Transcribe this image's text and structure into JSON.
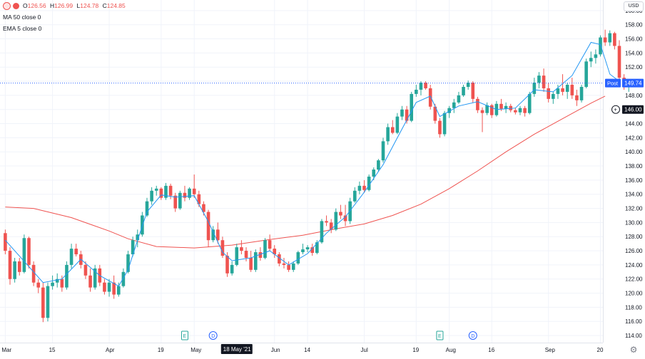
{
  "chart_data": {
    "type": "candlestick",
    "currency_button": "USD",
    "legend": {
      "ohlc_values": [
        {
          "key": "O",
          "value": "126.56"
        },
        {
          "key": "H",
          "value": "126.99"
        },
        {
          "key": "L",
          "value": "124.78"
        },
        {
          "key": "C",
          "value": "124.85"
        }
      ],
      "indicators": [
        "MA 50 close 0",
        "EMA 5 close 0"
      ]
    },
    "y_ticks": [
      "160.00",
      "158.00",
      "156.00",
      "154.00",
      "152.00",
      "150.00",
      "148.00",
      "146.00",
      "144.00",
      "142.00",
      "140.00",
      "138.00",
      "136.00",
      "134.00",
      "132.00",
      "130.00",
      "128.00",
      "126.00",
      "124.00",
      "122.00",
      "120.00",
      "118.00",
      "116.00",
      "114.00"
    ],
    "ylim": [
      113.0,
      161.5
    ],
    "x_ticks": [
      {
        "label": "Mar",
        "index": 0
      },
      {
        "label": "15",
        "index": 10
      },
      {
        "label": "Apr",
        "index": 22
      },
      {
        "label": "19",
        "index": 33
      },
      {
        "label": "May",
        "index": 40
      },
      {
        "label": "Jun",
        "index": 57
      },
      {
        "label": "14",
        "index": 64
      },
      {
        "label": "Jul",
        "index": 76
      },
      {
        "label": "19",
        "index": 87
      },
      {
        "label": "Aug",
        "index": 94
      },
      {
        "label": "16",
        "index": 103
      },
      {
        "label": "Sep",
        "index": 115
      },
      {
        "label": "20",
        "index": 126
      }
    ],
    "crosshair_date_label": "18 May '21",
    "crosshair_index": 49,
    "price_line": {
      "label": "Post",
      "value": 149.74,
      "text": "149.74",
      "color": "#2962ff"
    },
    "crosshair_price": {
      "value": 146.0,
      "text": "146.00"
    },
    "event_markers": [
      {
        "letter": "E",
        "index": 38,
        "kind": "earnings"
      },
      {
        "letter": "D",
        "index": 44,
        "kind": "dividend"
      },
      {
        "letter": "E",
        "index": 92,
        "kind": "earnings"
      },
      {
        "letter": "D",
        "index": 99,
        "kind": "dividend"
      }
    ],
    "colors": {
      "up": "#26a69a",
      "down": "#ef5350",
      "ma50": "#ef5350",
      "ema5": "#2196f3",
      "grid": "#f0f3fa"
    },
    "series": [
      {
        "name": "Candles",
        "ohlc": [
          [
            128.5,
            129.0,
            125.5,
            126.0
          ],
          [
            126.0,
            126.5,
            121.2,
            122.0
          ],
          [
            122.0,
            125.0,
            121.5,
            124.5
          ],
          [
            124.5,
            125.0,
            122.5,
            123.0
          ],
          [
            123.0,
            128.3,
            122.8,
            127.8
          ],
          [
            127.8,
            128.0,
            123.5,
            124.0
          ],
          [
            124.0,
            124.5,
            121.0,
            121.5
          ],
          [
            121.5,
            122.0,
            120.0,
            120.8
          ],
          [
            120.8,
            121.5,
            115.9,
            116.5
          ],
          [
            116.5,
            121.5,
            116.0,
            121.0
          ],
          [
            121.0,
            122.5,
            120.5,
            121.5
          ],
          [
            121.5,
            122.8,
            120.8,
            122.0
          ],
          [
            122.0,
            122.5,
            120.2,
            120.8
          ],
          [
            120.8,
            124.5,
            120.5,
            124.0
          ],
          [
            124.0,
            127.0,
            123.5,
            126.3
          ],
          [
            126.3,
            127.0,
            125.2,
            125.5
          ],
          [
            125.5,
            126.0,
            123.5,
            124.0
          ],
          [
            124.0,
            124.5,
            122.0,
            122.5
          ],
          [
            122.5,
            123.5,
            120.2,
            120.8
          ],
          [
            120.8,
            124.0,
            120.5,
            123.5
          ],
          [
            123.5,
            124.0,
            121.0,
            121.5
          ],
          [
            121.5,
            122.0,
            119.8,
            120.2
          ],
          [
            120.2,
            122.0,
            119.5,
            121.5
          ],
          [
            121.5,
            122.5,
            119.2,
            119.8
          ],
          [
            119.8,
            121.5,
            119.5,
            121.0
          ],
          [
            121.0,
            123.5,
            120.8,
            123.0
          ],
          [
            123.0,
            126.0,
            122.8,
            125.5
          ],
          [
            125.5,
            128.0,
            125.2,
            127.5
          ],
          [
            127.5,
            129.0,
            126.5,
            128.3
          ],
          [
            128.3,
            131.5,
            128.0,
            131.0
          ],
          [
            131.0,
            133.5,
            130.8,
            133.0
          ],
          [
            133.0,
            135.0,
            132.5,
            134.5
          ],
          [
            134.5,
            135.2,
            133.8,
            134.8
          ],
          [
            134.8,
            135.0,
            133.2,
            133.5
          ],
          [
            133.5,
            135.6,
            133.2,
            135.2
          ],
          [
            135.2,
            135.5,
            133.3,
            133.8
          ],
          [
            133.8,
            134.2,
            131.5,
            132.0
          ],
          [
            132.0,
            134.5,
            131.8,
            134.2
          ],
          [
            134.2,
            135.2,
            133.0,
            133.5
          ],
          [
            133.5,
            135.0,
            133.2,
            134.8
          ],
          [
            134.8,
            136.8,
            133.5,
            134.0
          ],
          [
            134.0,
            134.5,
            132.2,
            132.6
          ],
          [
            132.6,
            133.0,
            131.0,
            131.5
          ],
          [
            131.5,
            131.8,
            126.5,
            127.5
          ],
          [
            127.5,
            129.5,
            127.2,
            129.0
          ],
          [
            129.0,
            130.0,
            127.0,
            127.5
          ],
          [
            127.5,
            128.0,
            125.0,
            125.3
          ],
          [
            125.3,
            125.8,
            122.3,
            122.8
          ],
          [
            122.8,
            124.5,
            122.5,
            124.0
          ],
          [
            124.0,
            127.0,
            123.8,
            126.5
          ],
          [
            126.5,
            127.5,
            125.5,
            126.0
          ],
          [
            126.0,
            126.5,
            124.5,
            125.0
          ],
          [
            125.0,
            126.0,
            123.0,
            123.3
          ],
          [
            123.3,
            126.2,
            123.0,
            125.8
          ],
          [
            125.8,
            126.5,
            124.6,
            125.0
          ],
          [
            125.0,
            127.8,
            124.8,
            127.5
          ],
          [
            127.5,
            128.3,
            126.0,
            126.3
          ],
          [
            126.3,
            126.8,
            125.0,
            125.5
          ],
          [
            125.5,
            125.8,
            123.8,
            124.2
          ],
          [
            124.2,
            125.0,
            123.5,
            124.0
          ],
          [
            124.0,
            124.5,
            123.0,
            123.3
          ],
          [
            123.3,
            124.5,
            123.0,
            124.2
          ],
          [
            124.2,
            126.0,
            124.0,
            125.8
          ],
          [
            125.8,
            127.0,
            125.5,
            126.2
          ],
          [
            126.2,
            126.8,
            125.8,
            126.5
          ],
          [
            126.5,
            127.0,
            125.3,
            125.7
          ],
          [
            125.7,
            127.5,
            125.5,
            127.2
          ],
          [
            127.2,
            130.5,
            127.0,
            130.2
          ],
          [
            130.2,
            131.0,
            129.5,
            130.0
          ],
          [
            130.0,
            130.5,
            128.5,
            129.0
          ],
          [
            129.0,
            132.0,
            128.8,
            131.5
          ],
          [
            131.5,
            132.5,
            130.5,
            131.0
          ],
          [
            131.0,
            132.5,
            129.5,
            130.2
          ],
          [
            130.2,
            133.5,
            129.8,
            133.0
          ],
          [
            133.0,
            135.0,
            132.8,
            134.5
          ],
          [
            134.5,
            135.8,
            134.0,
            135.2
          ],
          [
            135.2,
            136.0,
            134.2,
            134.6
          ],
          [
            134.6,
            136.8,
            134.4,
            136.5
          ],
          [
            136.5,
            137.8,
            136.0,
            137.5
          ],
          [
            137.5,
            139.0,
            137.2,
            138.8
          ],
          [
            138.8,
            142.0,
            138.5,
            141.5
          ],
          [
            141.5,
            144.0,
            141.0,
            143.5
          ],
          [
            143.5,
            144.5,
            142.5,
            142.7
          ],
          [
            142.7,
            145.5,
            142.5,
            145.0
          ],
          [
            145.0,
            146.5,
            144.5,
            146.0
          ],
          [
            146.0,
            146.5,
            144.0,
            144.4
          ],
          [
            144.4,
            148.5,
            144.2,
            148.2
          ],
          [
            148.2,
            149.5,
            147.8,
            148.8
          ],
          [
            148.8,
            150.0,
            148.0,
            149.8
          ],
          [
            149.8,
            150.0,
            148.8,
            149.0
          ],
          [
            149.0,
            149.5,
            146.0,
            146.4
          ],
          [
            146.4,
            146.8,
            144.0,
            144.4
          ],
          [
            144.4,
            144.8,
            142.0,
            142.5
          ],
          [
            142.5,
            145.8,
            142.2,
            145.5
          ],
          [
            145.5,
            146.5,
            144.8,
            146.2
          ],
          [
            146.2,
            147.5,
            145.5,
            147.0
          ],
          [
            147.0,
            148.5,
            146.8,
            148.0
          ],
          [
            148.0,
            149.5,
            147.8,
            149.2
          ],
          [
            149.2,
            150.1,
            148.8,
            149.8
          ],
          [
            149.8,
            150.0,
            147.0,
            147.5
          ],
          [
            147.5,
            147.8,
            145.5,
            145.9
          ],
          [
            145.9,
            146.3,
            142.8,
            145.5
          ],
          [
            145.5,
            147.0,
            145.2,
            146.6
          ],
          [
            146.6,
            146.8,
            144.8,
            145.2
          ],
          [
            145.2,
            147.2,
            145.0,
            146.8
          ],
          [
            146.8,
            147.5,
            145.8,
            146.1
          ],
          [
            146.1,
            147.0,
            145.5,
            146.5
          ],
          [
            146.5,
            146.8,
            145.6,
            145.9
          ],
          [
            145.9,
            146.2,
            145.3,
            145.6
          ],
          [
            145.6,
            146.5,
            145.2,
            146.2
          ],
          [
            146.2,
            146.5,
            145.0,
            145.5
          ],
          [
            145.5,
            148.5,
            145.3,
            148.2
          ],
          [
            148.2,
            150.5,
            147.8,
            149.8
          ],
          [
            149.8,
            151.3,
            149.0,
            150.8
          ],
          [
            150.8,
            151.8,
            148.5,
            149.0
          ],
          [
            149.0,
            149.8,
            147.0,
            147.5
          ],
          [
            147.5,
            148.5,
            146.8,
            148.2
          ],
          [
            148.2,
            149.5,
            147.5,
            149.0
          ],
          [
            149.0,
            151.0,
            148.0,
            148.5
          ],
          [
            148.5,
            149.8,
            147.5,
            149.5
          ],
          [
            149.5,
            150.5,
            147.5,
            148.0
          ],
          [
            148.0,
            148.8,
            146.5,
            147.3
          ],
          [
            147.3,
            149.5,
            147.0,
            149.2
          ],
          [
            149.2,
            153.2,
            149.0,
            152.8
          ],
          [
            152.8,
            154.2,
            152.0,
            153.3
          ],
          [
            153.3,
            154.5,
            152.5,
            153.8
          ],
          [
            153.8,
            156.5,
            153.5,
            156.2
          ],
          [
            156.2,
            157.3,
            155.0,
            155.5
          ],
          [
            155.5,
            157.2,
            155.0,
            156.8
          ],
          [
            156.8,
            157.0,
            154.5,
            155.0
          ],
          [
            155.0,
            155.8,
            149.5,
            150.5
          ],
          [
            150.5,
            151.0,
            148.8,
            149.2
          ],
          [
            149.2,
            150.2,
            148.5,
            149.9
          ]
        ]
      },
      {
        "name": "MA 50",
        "points": [
          [
            0,
            132.2
          ],
          [
            6,
            132.0
          ],
          [
            14,
            130.7
          ],
          [
            22,
            128.8
          ],
          [
            26,
            127.7
          ],
          [
            32,
            126.6
          ],
          [
            40,
            126.4
          ],
          [
            48,
            126.8
          ],
          [
            56,
            127.6
          ],
          [
            63,
            128.2
          ],
          [
            70,
            129.1
          ],
          [
            76,
            129.8
          ],
          [
            82,
            131.0
          ],
          [
            88,
            132.6
          ],
          [
            94,
            134.8
          ],
          [
            100,
            137.3
          ],
          [
            106,
            140.0
          ],
          [
            112,
            142.5
          ],
          [
            118,
            144.7
          ],
          [
            124,
            146.9
          ],
          [
            127,
            147.9
          ]
        ]
      },
      {
        "name": "EMA 5",
        "points": [
          [
            0,
            127.5
          ],
          [
            4,
            124.5
          ],
          [
            8,
            121.5
          ],
          [
            12,
            122.0
          ],
          [
            16,
            124.8
          ],
          [
            20,
            122.5
          ],
          [
            24,
            121.0
          ],
          [
            26,
            123.3
          ],
          [
            28,
            127.5
          ],
          [
            30,
            131.5
          ],
          [
            33,
            133.9
          ],
          [
            36,
            133.6
          ],
          [
            40,
            133.8
          ],
          [
            43,
            130.1
          ],
          [
            46,
            125.8
          ],
          [
            48,
            124.6
          ],
          [
            52,
            125.0
          ],
          [
            56,
            126.0
          ],
          [
            60,
            124.0
          ],
          [
            64,
            125.6
          ],
          [
            68,
            128.5
          ],
          [
            72,
            130.8
          ],
          [
            76,
            134.3
          ],
          [
            80,
            138.2
          ],
          [
            83,
            142.0
          ],
          [
            87,
            147.0
          ],
          [
            90,
            147.9
          ],
          [
            92,
            145.0
          ],
          [
            96,
            146.5
          ],
          [
            100,
            147.1
          ],
          [
            104,
            146.0
          ],
          [
            108,
            146.2
          ],
          [
            112,
            148.8
          ],
          [
            116,
            148.5
          ],
          [
            120,
            150.8
          ],
          [
            124,
            155.5
          ],
          [
            126,
            155.2
          ],
          [
            128,
            151.0
          ],
          [
            130,
            150.0
          ]
        ]
      }
    ]
  }
}
